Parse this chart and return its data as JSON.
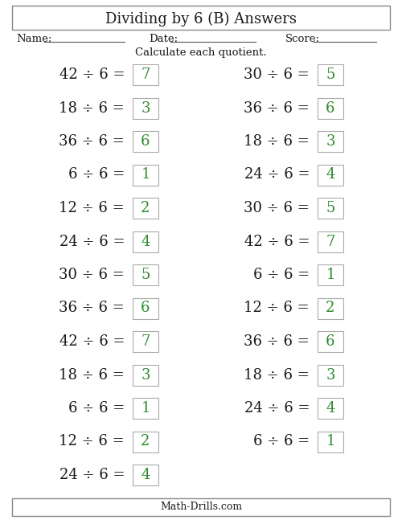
{
  "title": "Dividing by 6 (B) Answers",
  "subtitle": "Calculate each quotient.",
  "footer": "Math-Drills.com",
  "name_label": "Name:",
  "date_label": "Date:",
  "score_label": "Score:",
  "left_column": [
    {
      "problem": "42 ÷ 6 =",
      "answer": "7"
    },
    {
      "problem": "18 ÷ 6 =",
      "answer": "3"
    },
    {
      "problem": "36 ÷ 6 =",
      "answer": "6"
    },
    {
      "problem": "6 ÷ 6 =",
      "answer": "1"
    },
    {
      "problem": "12 ÷ 6 =",
      "answer": "2"
    },
    {
      "problem": "24 ÷ 6 =",
      "answer": "4"
    },
    {
      "problem": "30 ÷ 6 =",
      "answer": "5"
    },
    {
      "problem": "36 ÷ 6 =",
      "answer": "6"
    },
    {
      "problem": "42 ÷ 6 =",
      "answer": "7"
    },
    {
      "problem": "18 ÷ 6 =",
      "answer": "3"
    },
    {
      "problem": "6 ÷ 6 =",
      "answer": "1"
    },
    {
      "problem": "12 ÷ 6 =",
      "answer": "2"
    },
    {
      "problem": "24 ÷ 6 =",
      "answer": "4"
    }
  ],
  "right_column": [
    {
      "problem": "30 ÷ 6 =",
      "answer": "5"
    },
    {
      "problem": "36 ÷ 6 =",
      "answer": "6"
    },
    {
      "problem": "18 ÷ 6 =",
      "answer": "3"
    },
    {
      "problem": "24 ÷ 6 =",
      "answer": "4"
    },
    {
      "problem": "30 ÷ 6 =",
      "answer": "5"
    },
    {
      "problem": "42 ÷ 6 =",
      "answer": "7"
    },
    {
      "problem": "6 ÷ 6 =",
      "answer": "1"
    },
    {
      "problem": "12 ÷ 6 =",
      "answer": "2"
    },
    {
      "problem": "36 ÷ 6 =",
      "answer": "6"
    },
    {
      "problem": "18 ÷ 6 =",
      "answer": "3"
    },
    {
      "problem": "24 ÷ 6 =",
      "answer": "4"
    },
    {
      "problem": "6 ÷ 6 =",
      "answer": "1"
    }
  ],
  "answer_color": "#2e8b2e",
  "text_color": "#1a1a1a",
  "box_edge_color": "#aaaaaa",
  "box_face_color": "#ffffff",
  "border_color": "#888888",
  "bg_color": "#ffffff",
  "problem_fontsize": 13,
  "answer_fontsize": 13,
  "title_fontsize": 13,
  "header_fontsize": 9.5,
  "footer_fontsize": 9,
  "subtitle_fontsize": 9.5
}
